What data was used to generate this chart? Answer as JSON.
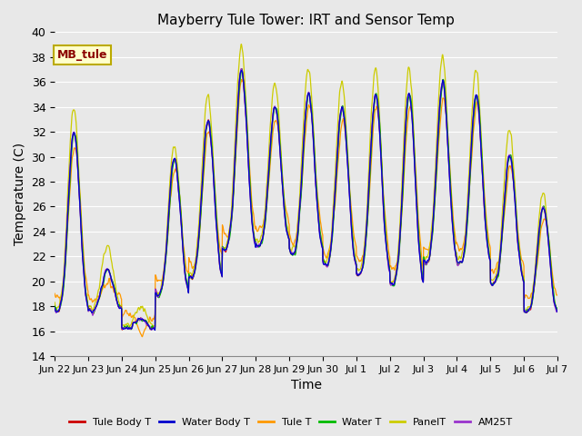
{
  "title": "Mayberry Tule Tower: IRT and Sensor Temp",
  "xlabel": "Time",
  "ylabel": "Temperature (C)",
  "ylim": [
    14,
    40
  ],
  "yticks": [
    14,
    16,
    18,
    20,
    22,
    24,
    26,
    28,
    30,
    32,
    34,
    36,
    38,
    40
  ],
  "bg_color": "#e8e8e8",
  "grid_color": "#ffffff",
  "legend_label": "MB_tule",
  "series_colors": {
    "Tule Body T": "#cc0000",
    "Water Body T": "#0000cc",
    "Tule T": "#ff9900",
    "Water T": "#00bb00",
    "PanelT": "#cccc00",
    "AM25T": "#9933cc"
  },
  "tick_labels": [
    "Jun 22",
    "Jun 23",
    "Jun 24",
    "Jun 25",
    "Jun 26",
    "Jun 27",
    "Jun 28",
    "Jun 29",
    "Jun 30",
    "Jul 1",
    "Jul 2",
    "Jul 3",
    "Jul 4",
    "Jul 5",
    "Jul 6",
    "Jul 7"
  ],
  "n_days": 15,
  "ppd": 144,
  "day_peaks": [
    32,
    21,
    17,
    30,
    33,
    37,
    34,
    35,
    34,
    35,
    35,
    36,
    35,
    30,
    26
  ],
  "day_mins": [
    15,
    17,
    16,
    17,
    18,
    20,
    21,
    20,
    19,
    18,
    17,
    19,
    19,
    18,
    16
  ],
  "panel_extra": [
    2,
    2,
    1,
    1,
    2,
    2,
    2,
    2,
    2,
    2,
    2,
    2,
    2,
    2,
    1
  ]
}
